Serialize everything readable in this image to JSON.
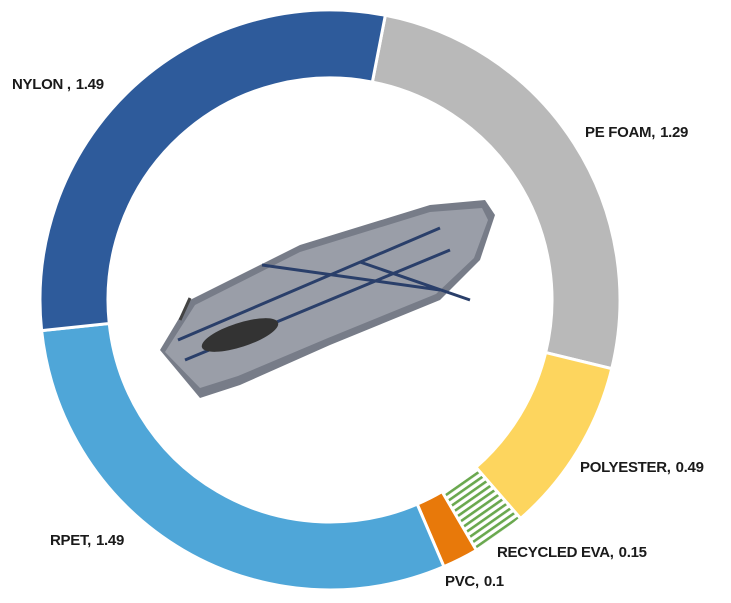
{
  "chart_data": {
    "type": "donut",
    "categories": [
      "PE FOAM,",
      "POLYESTER,",
      "RECYCLED EVA,",
      "PVC,",
      "RPET,",
      "NYLON ,"
    ],
    "values": [
      1.29,
      0.49,
      0.15,
      0.1,
      1.49,
      1.49
    ],
    "colors": [
      "#b9b9b9",
      "#fdd55e",
      "hatch",
      "#e8790a",
      "#4fa6d8",
      "#2e5b9b"
    ]
  }
}
